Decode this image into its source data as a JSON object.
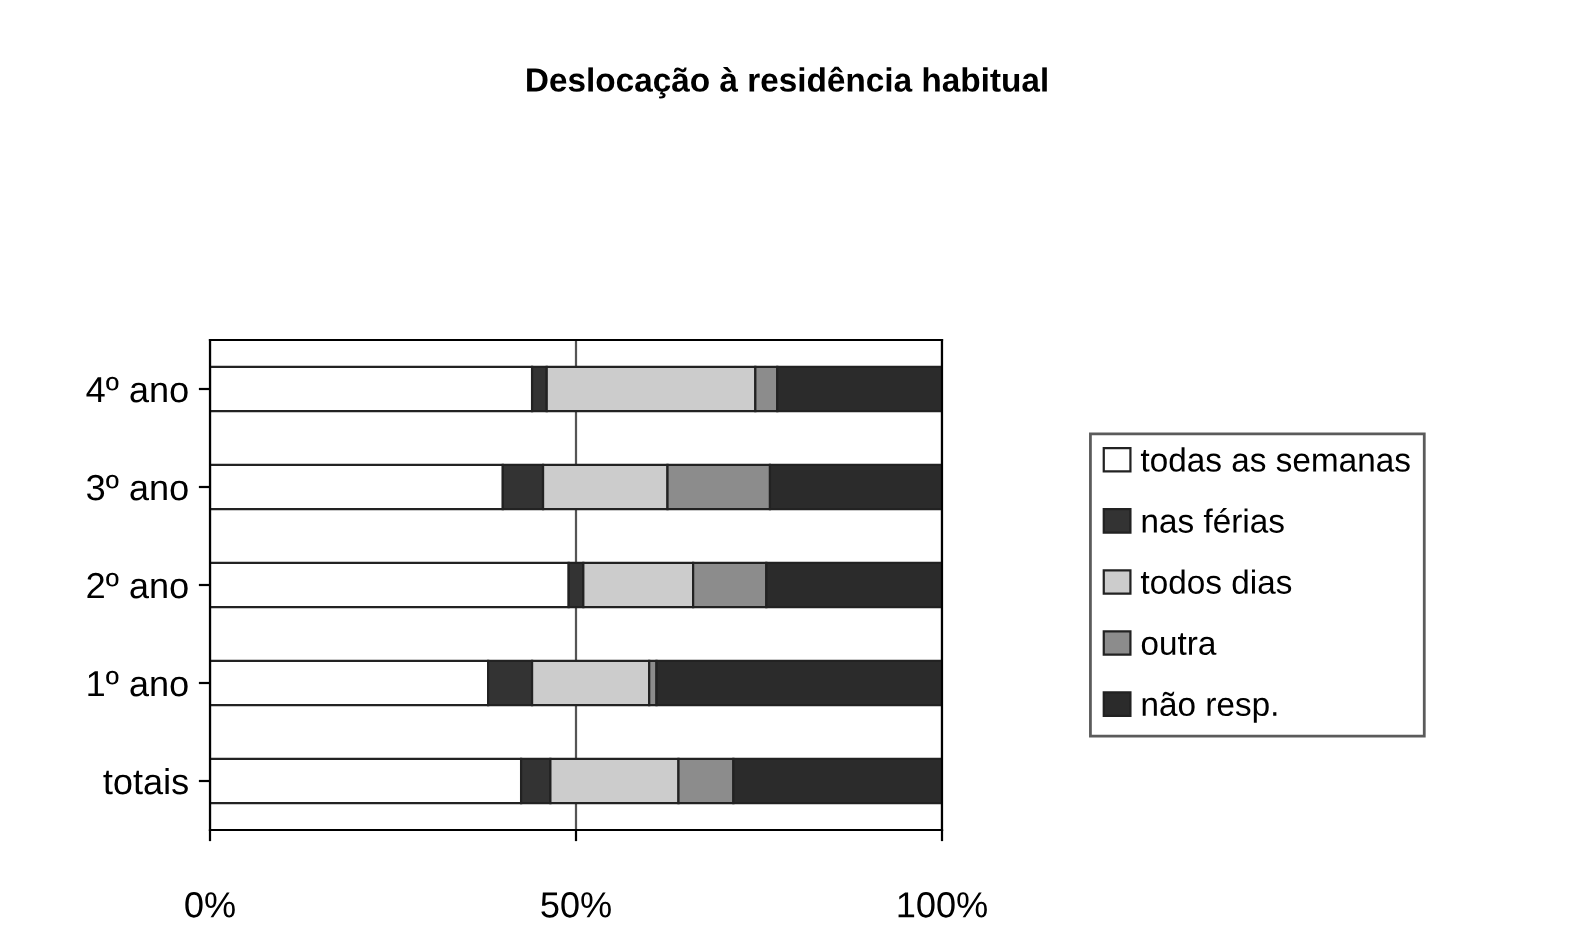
{
  "chart_data": {
    "type": "bar",
    "title": "Deslocação à residência habitual",
    "orientation": "horizontal",
    "stacked": true,
    "categories": [
      "4º ano",
      "3º ano",
      "2º ano",
      "1º ano",
      "totais"
    ],
    "series": [
      {
        "name": "todas as semanas",
        "color": "#ffffff",
        "values": [
          44,
          40,
          49,
          38,
          42.5
        ]
      },
      {
        "name": "nas férias",
        "color": "#333333",
        "values": [
          2,
          5.5,
          2,
          6,
          4
        ]
      },
      {
        "name": "todos dias",
        "color": "#cccccc",
        "values": [
          28.5,
          17,
          15,
          16,
          17.5
        ]
      },
      {
        "name": "outra",
        "color": "#8c8c8c",
        "values": [
          3,
          14,
          10,
          1,
          7.5
        ]
      },
      {
        "name": "não resp.",
        "color": "#2b2b2b",
        "values": [
          22.5,
          23.5,
          24,
          39,
          28.5
        ]
      }
    ],
    "xlim": [
      0,
      100
    ],
    "xticks": [
      {
        "value": 0,
        "label": "0%"
      },
      {
        "value": 50,
        "label": "50%"
      },
      {
        "value": 100,
        "label": "100%"
      }
    ],
    "grid": "x",
    "legend": "right"
  }
}
